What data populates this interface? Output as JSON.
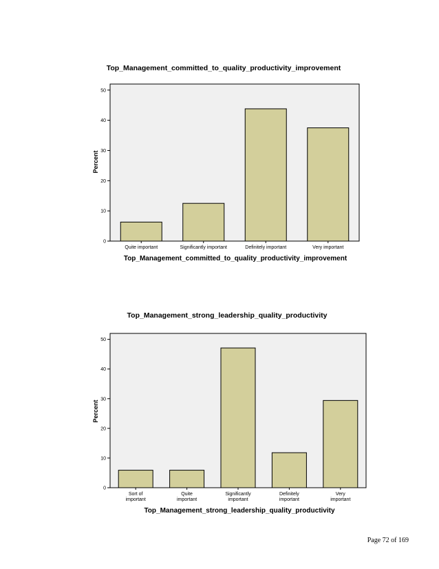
{
  "charts": [
    {
      "title": "Top_Management_committed_to_quality_productivity_improvement",
      "ylabel": "Percent",
      "xlabel": "Top_Management_committed_to_quality_productivity_improvement"
    },
    {
      "title": "Top_Management_strong_leadership_quality_productivity",
      "ylabel": "Percent",
      "xlabel": "Top_Management_strong_leadership_quality_productivity"
    }
  ],
  "chart_data": [
    {
      "type": "bar",
      "title": "Top_Management_committed_to_quality_productivity_improvement",
      "xlabel": "Top_Management_committed_to_quality_productivity_improvement",
      "ylabel": "Percent",
      "categories": [
        "Quite important",
        "Significantly important",
        "Definitely important",
        "Very important"
      ],
      "values": [
        6.3,
        12.5,
        43.8,
        37.5
      ],
      "ylim": [
        0,
        52
      ],
      "yticks": [
        0,
        10,
        20,
        30,
        40,
        50
      ],
      "bar_color": "#d3cf9b",
      "plot_background": "#f0f0f0",
      "grid": false
    },
    {
      "type": "bar",
      "title": "Top_Management_strong_leadership_quality_productivity",
      "xlabel": "Top_Management_strong_leadership_quality_productivity",
      "ylabel": "Percent",
      "categories": [
        "Sort of important",
        "Quite important",
        "Significantly important",
        "Definitely important",
        "Very important"
      ],
      "values": [
        5.9,
        5.9,
        47.1,
        11.8,
        29.4
      ],
      "ylim": [
        0,
        52
      ],
      "yticks": [
        0,
        10,
        20,
        30,
        40,
        50
      ],
      "bar_color": "#d3cf9b",
      "plot_background": "#f0f0f0",
      "grid": false
    }
  ],
  "footer": {
    "page_label": "Page 72 of 169"
  }
}
